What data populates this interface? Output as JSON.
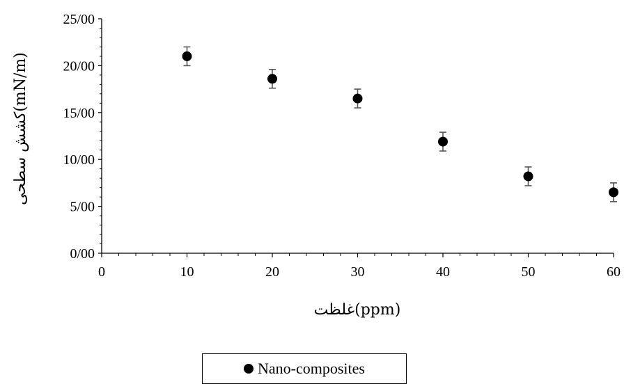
{
  "chart_data": {
    "type": "scatter",
    "xlabel": "غلظت(ppm)",
    "ylabel": "کشش سطحی(mN/m)",
    "xlim": [
      0,
      60
    ],
    "ylim": [
      0,
      25
    ],
    "x_ticks": [
      "0",
      "10",
      "20",
      "30",
      "40",
      "50",
      "60"
    ],
    "y_ticks": [
      "0/00",
      "5/00",
      "10/00",
      "15/00",
      "20/00",
      "25/00"
    ],
    "grid": false,
    "legend_position": "bottom",
    "series": [
      {
        "name": "Nano-composites",
        "color": "#000000",
        "points": [
          {
            "x": 10,
            "y": 21.0,
            "err": 1.0
          },
          {
            "x": 20,
            "y": 18.6,
            "err": 1.0
          },
          {
            "x": 30,
            "y": 16.5,
            "err": 1.0
          },
          {
            "x": 40,
            "y": 11.9,
            "err": 1.0
          },
          {
            "x": 50,
            "y": 8.2,
            "err": 1.0
          },
          {
            "x": 60,
            "y": 6.5,
            "err": 1.0
          }
        ]
      }
    ]
  }
}
